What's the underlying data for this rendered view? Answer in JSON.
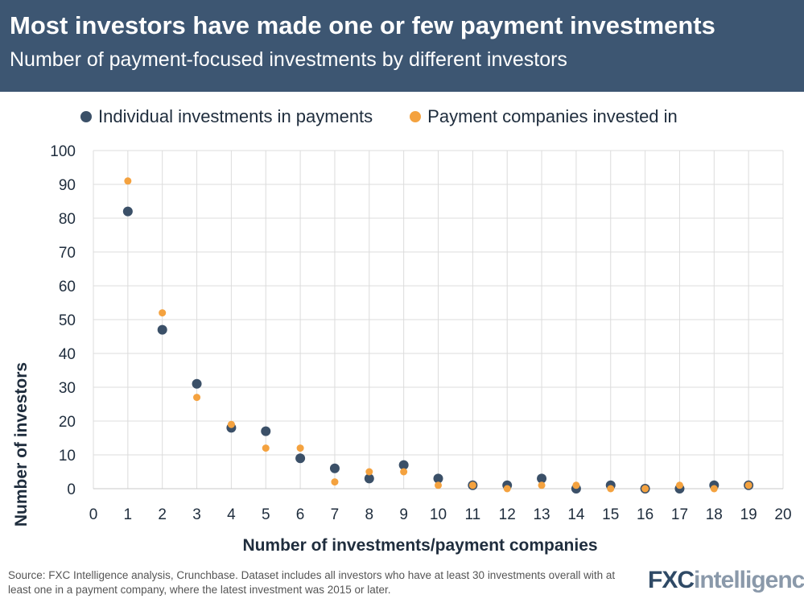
{
  "header": {
    "title": "Most investors have made one or few payment investments",
    "subtitle": "Number of payment-focused investments by different investors"
  },
  "legend": {
    "items": [
      {
        "label": "Individual investments in payments",
        "color": "#3b5068"
      },
      {
        "label": "Payment companies invested in",
        "color": "#f4a23f"
      }
    ]
  },
  "chart_data": {
    "type": "scatter",
    "title": "Most investors have made one or few payment investments",
    "subtitle": "Number of payment-focused investments by different investors",
    "xlabel": "Number of investments/payment companies",
    "ylabel": "Number of investors",
    "xlim": [
      0,
      20
    ],
    "ylim": [
      0,
      100
    ],
    "xticks": [
      0,
      1,
      2,
      3,
      4,
      5,
      6,
      7,
      8,
      9,
      10,
      11,
      12,
      13,
      14,
      15,
      16,
      17,
      18,
      19,
      20
    ],
    "yticks": [
      0,
      10,
      20,
      30,
      40,
      50,
      60,
      70,
      80,
      90,
      100
    ],
    "grid": true,
    "legend_position": "top",
    "series": [
      {
        "name": "Individual investments in payments",
        "color": "#3b5068",
        "x": [
          1,
          2,
          3,
          4,
          5,
          6,
          7,
          8,
          9,
          10,
          11,
          12,
          13,
          14,
          15,
          16,
          17,
          18,
          19
        ],
        "y": [
          82,
          47,
          31,
          18,
          17,
          9,
          6,
          3,
          7,
          3,
          1,
          1,
          3,
          0,
          1,
          0,
          0,
          1,
          1
        ]
      },
      {
        "name": "Payment companies invested in",
        "color": "#f4a23f",
        "x": [
          1,
          2,
          3,
          4,
          5,
          6,
          7,
          8,
          9,
          10,
          11,
          12,
          13,
          14,
          15,
          16,
          17,
          18,
          19
        ],
        "y": [
          91,
          52,
          27,
          19,
          12,
          12,
          2,
          5,
          5,
          1,
          1,
          0,
          1,
          1,
          0,
          0,
          1,
          0,
          1
        ]
      }
    ]
  },
  "footer": {
    "source": "Source: FXC Intelligence analysis, Crunchbase. Dataset includes all investors who have at least 30 investments overall with at least one in a payment company, where the latest investment was 2015 or later.",
    "logo_fx": "FXC",
    "logo_intel": "intelligence"
  }
}
